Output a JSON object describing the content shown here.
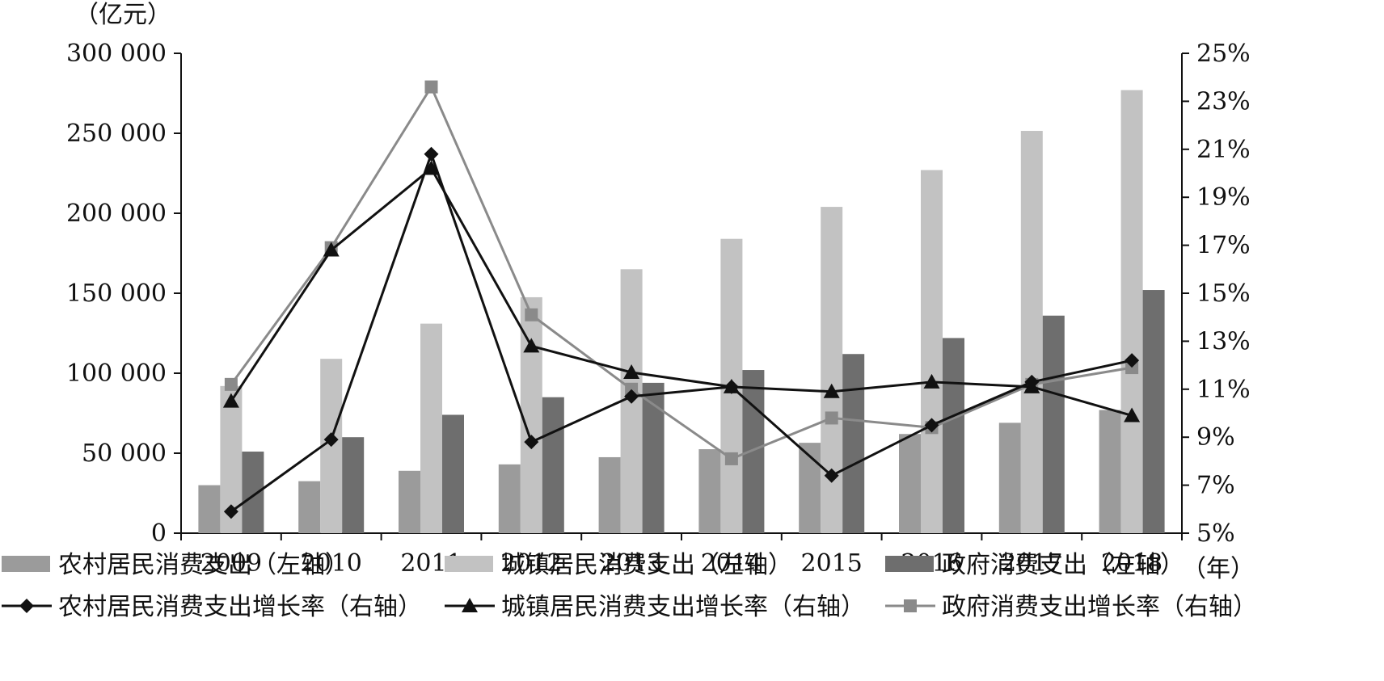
{
  "chart_data": {
    "type": "bar",
    "left_unit": "（亿元）",
    "x_unit": "（年）",
    "categories": [
      "2009",
      "2010",
      "2011",
      "2012",
      "2013",
      "2014",
      "2015",
      "2016",
      "2017",
      "2018"
    ],
    "left_ylim": [
      0,
      300000
    ],
    "left_ticks": [
      0,
      50000,
      100000,
      150000,
      200000,
      250000,
      300000
    ],
    "left_tick_labels": [
      "0",
      "50 000",
      "100 000",
      "150 000",
      "200 000",
      "250 000",
      "300 000"
    ],
    "right_ylim": [
      5,
      25
    ],
    "right_ticks": [
      5,
      7,
      9,
      11,
      13,
      15,
      17,
      19,
      21,
      23,
      25
    ],
    "right_tick_labels": [
      "5%",
      "7%",
      "9%",
      "11%",
      "13%",
      "15%",
      "17%",
      "19%",
      "21%",
      "23%",
      "25%"
    ],
    "bar_series": [
      {
        "name": "农村居民消费支出（左轴）",
        "color": "#9b9b9b",
        "values": [
          30000,
          32500,
          39000,
          43000,
          47500,
          52500,
          56500,
          62000,
          69000,
          77000
        ]
      },
      {
        "name": "城镇居民消费支出（左轴）",
        "color": "#c2c2c2",
        "values": [
          92000,
          109000,
          131000,
          147500,
          165000,
          184000,
          204000,
          227000,
          251500,
          277000
        ]
      },
      {
        "name": "政府消费支出（左轴）",
        "color": "#6e6e6e",
        "values": [
          51000,
          60000,
          74000,
          85000,
          94000,
          102000,
          112000,
          122000,
          136000,
          152000
        ]
      }
    ],
    "line_series": [
      {
        "name": "农村居民消费支出增长率（右轴）",
        "color": "#111111",
        "marker": "diamond",
        "values": [
          5.9,
          8.9,
          20.8,
          8.8,
          10.7,
          11.1,
          7.4,
          9.5,
          11.3,
          12.2
        ]
      },
      {
        "name": "城镇居民消费支出增长率（右轴）",
        "color": "#111111",
        "marker": "triangle",
        "values": [
          10.5,
          16.8,
          20.2,
          12.8,
          11.7,
          11.1,
          10.9,
          11.3,
          11.1,
          9.9
        ]
      },
      {
        "name": "政府消费支出增长率（右轴）",
        "color": "#8a8a8a",
        "marker": "square",
        "values": [
          11.2,
          16.9,
          23.6,
          14.1,
          11.0,
          8.1,
          9.8,
          9.4,
          11.2,
          11.9
        ]
      }
    ]
  }
}
